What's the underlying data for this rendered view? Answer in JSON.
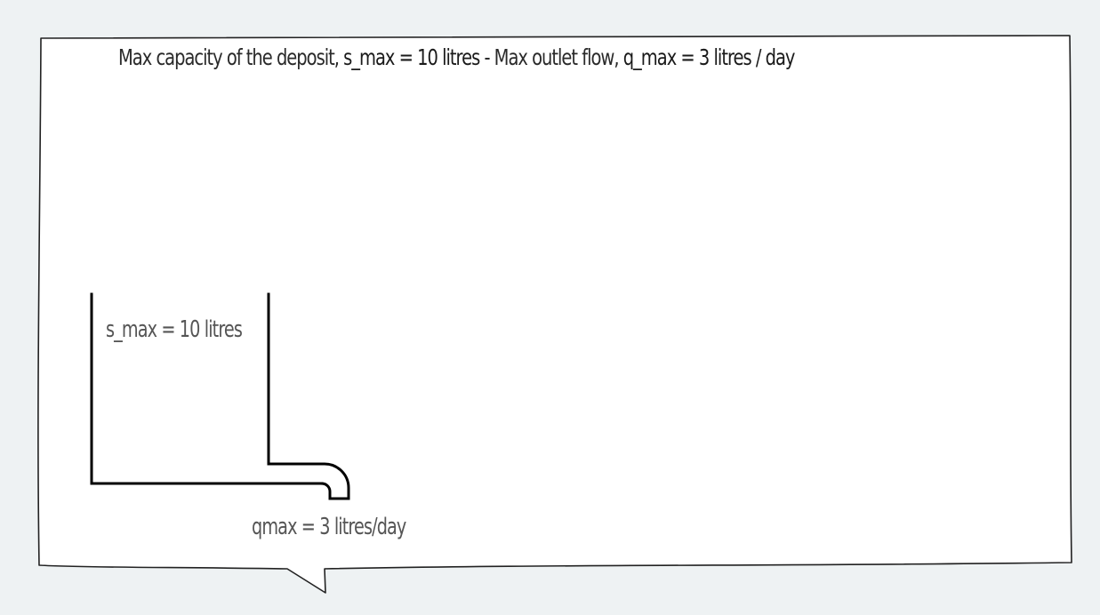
{
  "heading": {
    "part1": "Max capacity of the deposit, ",
    "part2": "s_max = 10 litres",
    "part3": " - Max outlet flow, ",
    "part4": "q_max = 3 litres / day"
  },
  "tank": {
    "capacity_label": "s_max = 10 litres",
    "outlet_label": "qmax = 3 litres/day"
  }
}
